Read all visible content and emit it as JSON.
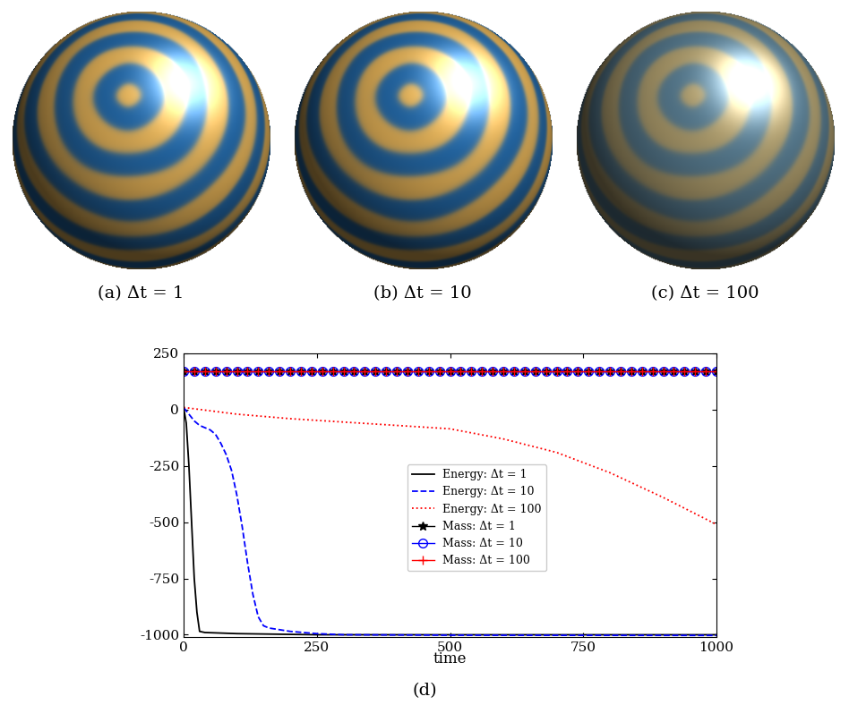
{
  "images": [
    {
      "caption": "(a) Δt = 1"
    },
    {
      "caption": "(b) Δt = 10"
    },
    {
      "caption": "(c) Δt = 100"
    }
  ],
  "chart_data": {
    "type": "line",
    "caption": "(d)",
    "x_label": "time",
    "xlim": [
      0,
      1000
    ],
    "xticks": [
      0,
      250,
      500,
      750,
      1000
    ],
    "ylim": [
      -1010,
      250
    ],
    "yticks": [
      -1000,
      -750,
      -500,
      -250,
      0,
      250
    ],
    "legend": "center",
    "series": [
      {
        "name": "Energy: Δt = 1",
        "color": "#000000",
        "line_style": "solid",
        "x": [
          0,
          5,
          10,
          15,
          20,
          25,
          30,
          40,
          100,
          250,
          500,
          1000
        ],
        "values": [
          10,
          -60,
          -250,
          -500,
          -750,
          -900,
          -985,
          -990,
          -995,
          -1000,
          -1000,
          -1000
        ]
      },
      {
        "name": "Energy: Δt = 10",
        "color": "#0000ff",
        "line_style": "dashed",
        "x": [
          0,
          10,
          20,
          30,
          40,
          50,
          60,
          70,
          80,
          90,
          100,
          110,
          120,
          130,
          140,
          150,
          160,
          200,
          250,
          300,
          500,
          1000
        ],
        "values": [
          10,
          -20,
          -50,
          -70,
          -80,
          -90,
          -110,
          -150,
          -200,
          -270,
          -380,
          -520,
          -680,
          -820,
          -920,
          -960,
          -970,
          -985,
          -995,
          -1000,
          -1002,
          -1003
        ]
      },
      {
        "name": "Energy: Δt = 100",
        "color": "#ff0000",
        "line_style": "dotted",
        "x": [
          0,
          100,
          200,
          300,
          400,
          500,
          600,
          700,
          800,
          900,
          1000
        ],
        "values": [
          10,
          -20,
          -40,
          -55,
          -70,
          -85,
          -130,
          -190,
          -280,
          -390,
          -510
        ]
      },
      {
        "name": "Mass: Δt = 1",
        "color": "#000000",
        "line_style": "solid",
        "marker": "star",
        "x": [
          0,
          20,
          40,
          60,
          80,
          100,
          120,
          140,
          160,
          180,
          200,
          220,
          240,
          260,
          280,
          300,
          320,
          340,
          360,
          380,
          400,
          420,
          440,
          460,
          480,
          500,
          520,
          540,
          560,
          580,
          600,
          620,
          640,
          660,
          680,
          700,
          720,
          740,
          760,
          780,
          800,
          820,
          840,
          860,
          880,
          900,
          920,
          940,
          960,
          980,
          1000
        ],
        "values": [
          170,
          170,
          170,
          170,
          170,
          170,
          170,
          170,
          170,
          170,
          170,
          170,
          170,
          170,
          170,
          170,
          170,
          170,
          170,
          170,
          170,
          170,
          170,
          170,
          170,
          170,
          170,
          170,
          170,
          170,
          170,
          170,
          170,
          170,
          170,
          170,
          170,
          170,
          170,
          170,
          170,
          170,
          170,
          170,
          170,
          170,
          170,
          170,
          170,
          170,
          170
        ]
      },
      {
        "name": "Mass: Δt = 10",
        "color": "#0000ff",
        "line_style": "solid",
        "marker": "circle",
        "x": [
          0,
          20,
          40,
          60,
          80,
          100,
          120,
          140,
          160,
          180,
          200,
          220,
          240,
          260,
          280,
          300,
          320,
          340,
          360,
          380,
          400,
          420,
          440,
          460,
          480,
          500,
          520,
          540,
          560,
          580,
          600,
          620,
          640,
          660,
          680,
          700,
          720,
          740,
          760,
          780,
          800,
          820,
          840,
          860,
          880,
          900,
          920,
          940,
          960,
          980,
          1000
        ],
        "values": [
          170,
          170,
          170,
          170,
          170,
          170,
          170,
          170,
          170,
          170,
          170,
          170,
          170,
          170,
          170,
          170,
          170,
          170,
          170,
          170,
          170,
          170,
          170,
          170,
          170,
          170,
          170,
          170,
          170,
          170,
          170,
          170,
          170,
          170,
          170,
          170,
          170,
          170,
          170,
          170,
          170,
          170,
          170,
          170,
          170,
          170,
          170,
          170,
          170,
          170,
          170
        ]
      },
      {
        "name": "Mass: Δt = 100",
        "color": "#ff0000",
        "line_style": "solid",
        "marker": "plus",
        "x": [
          0,
          20,
          40,
          60,
          80,
          100,
          120,
          140,
          160,
          180,
          200,
          220,
          240,
          260,
          280,
          300,
          320,
          340,
          360,
          380,
          400,
          420,
          440,
          460,
          480,
          500,
          520,
          540,
          560,
          580,
          600,
          620,
          640,
          660,
          680,
          700,
          720,
          740,
          760,
          780,
          800,
          820,
          840,
          860,
          880,
          900,
          920,
          940,
          960,
          980,
          1000
        ],
        "values": [
          170,
          170,
          170,
          170,
          170,
          170,
          170,
          170,
          170,
          170,
          170,
          170,
          170,
          170,
          170,
          170,
          170,
          170,
          170,
          170,
          170,
          170,
          170,
          170,
          170,
          170,
          170,
          170,
          170,
          170,
          170,
          170,
          170,
          170,
          170,
          170,
          170,
          170,
          170,
          170,
          170,
          170,
          170,
          170,
          170,
          170,
          170,
          170,
          170,
          170,
          170
        ]
      }
    ]
  }
}
